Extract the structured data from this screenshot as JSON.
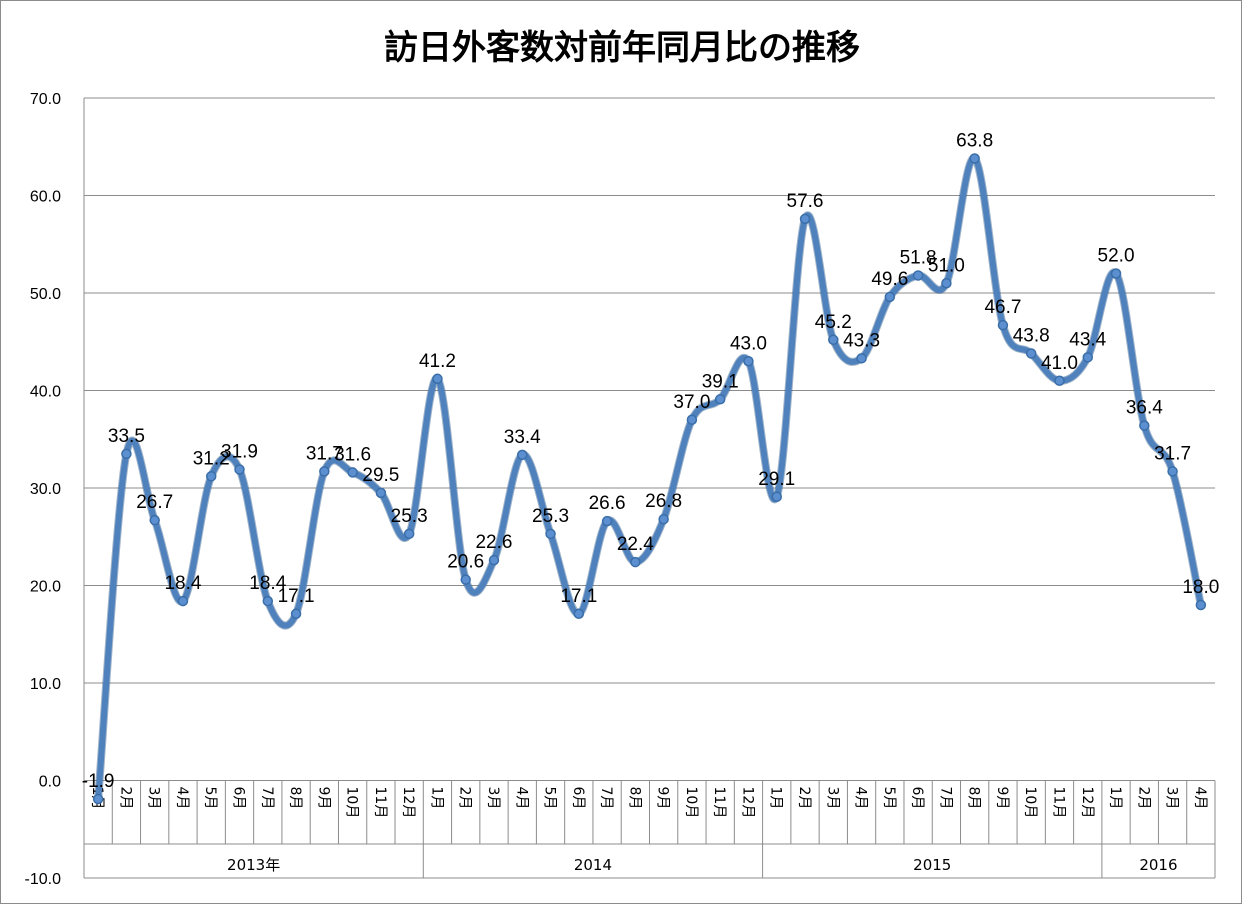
{
  "chart_data": {
    "type": "line",
    "title": "訪日外客数対前年同月比の推移",
    "xlabel": "",
    "ylabel": "",
    "ylim": [
      -10,
      70
    ],
    "y_ticks": [
      "-10.0",
      "0.0",
      "10.0",
      "20.0",
      "30.0",
      "40.0",
      "50.0",
      "60.0",
      "70.0"
    ],
    "grid": true,
    "legend": "none",
    "line_color": "#4f81bd",
    "years": [
      {
        "label": "2013年",
        "months": 12
      },
      {
        "label": "2014",
        "months": 12
      },
      {
        "label": "2015",
        "months": 12
      },
      {
        "label": "2016",
        "months": 4
      }
    ],
    "categories": [
      "1月",
      "2月",
      "3月",
      "4月",
      "5月",
      "6月",
      "7月",
      "8月",
      "9月",
      "10月",
      "11月",
      "12月",
      "1月",
      "2月",
      "3月",
      "4月",
      "5月",
      "6月",
      "7月",
      "8月",
      "9月",
      "10月",
      "11月",
      "12月",
      "1月",
      "2月",
      "3月",
      "4月",
      "5月",
      "6月",
      "7月",
      "8月",
      "9月",
      "10月",
      "11月",
      "12月",
      "1月",
      "2月",
      "3月",
      "4月"
    ],
    "values": [
      -1.9,
      33.5,
      26.7,
      18.4,
      31.2,
      31.9,
      18.4,
      17.1,
      31.7,
      31.6,
      29.5,
      25.3,
      41.2,
      20.6,
      22.6,
      33.4,
      25.3,
      17.1,
      26.6,
      22.4,
      26.8,
      37.0,
      39.1,
      43.0,
      29.1,
      57.6,
      45.2,
      43.3,
      49.6,
      51.8,
      51.0,
      63.8,
      46.7,
      43.8,
      41.0,
      43.4,
      52.0,
      36.4,
      31.7,
      18.0
    ],
    "data_labels": [
      "-1.9",
      "33.5",
      "26.7",
      "18.4",
      "31.2",
      "31.9",
      "18.4",
      "17.1",
      "31.7",
      "31.6",
      "29.5",
      "25.3",
      "41.2",
      "20.6",
      "22.6",
      "33.4",
      "25.3",
      "17.1",
      "26.6",
      "22.4",
      "26.8",
      "37.0",
      "39.1",
      "43.0",
      "29.1",
      "57.6",
      "45.2",
      "43.3",
      "49.6",
      "51.8",
      "51.0",
      "63.8",
      "46.7",
      "43.8",
      "41.0",
      "43.4",
      "52.0",
      "36.4",
      "31.7",
      "18.0"
    ]
  }
}
